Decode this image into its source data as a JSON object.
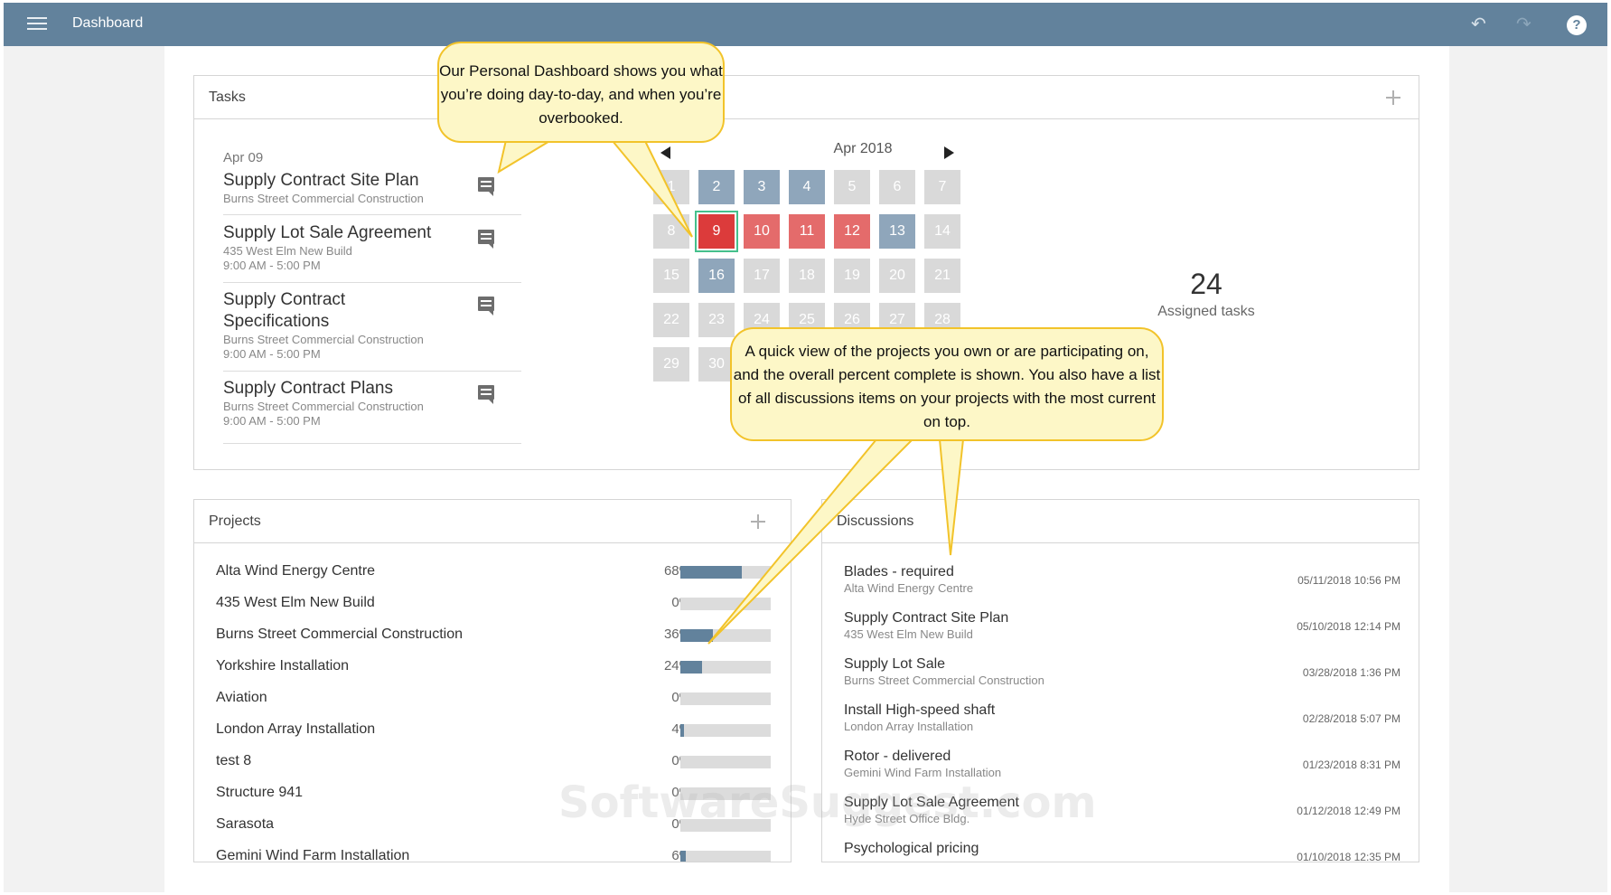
{
  "app": {
    "title": "Dashboard"
  },
  "tasks": {
    "header": "Tasks",
    "date": "Apr 09",
    "items": [
      {
        "name": "Supply Contract Site Plan",
        "project": "Burns Street Commercial Construction",
        "time": ""
      },
      {
        "name": "Supply Lot Sale Agreement",
        "project": "435 West Elm New Build",
        "time": "9:00 AM - 5:00 PM"
      },
      {
        "name": "Supply Contract Specifications",
        "project": "Burns Street Commercial Construction",
        "time": "9:00 AM - 5:00 PM"
      },
      {
        "name": "Supply Contract Plans",
        "project": "Burns Street Commercial Construction",
        "time": "9:00 AM - 5:00 PM"
      }
    ],
    "calendar": {
      "month": "Apr 2018",
      "days": [
        {
          "d": "1",
          "s": "empty"
        },
        {
          "d": "2",
          "s": "busy"
        },
        {
          "d": "3",
          "s": "busy"
        },
        {
          "d": "4",
          "s": "busy"
        },
        {
          "d": "5",
          "s": "empty"
        },
        {
          "d": "6",
          "s": "empty"
        },
        {
          "d": "7",
          "s": "empty"
        },
        {
          "d": "8",
          "s": "empty"
        },
        {
          "d": "9",
          "s": "sel"
        },
        {
          "d": "10",
          "s": "over"
        },
        {
          "d": "11",
          "s": "over"
        },
        {
          "d": "12",
          "s": "over"
        },
        {
          "d": "13",
          "s": "busy"
        },
        {
          "d": "14",
          "s": "empty"
        },
        {
          "d": "15",
          "s": "empty"
        },
        {
          "d": "16",
          "s": "busy"
        },
        {
          "d": "17",
          "s": "empty"
        },
        {
          "d": "18",
          "s": "empty"
        },
        {
          "d": "19",
          "s": "empty"
        },
        {
          "d": "20",
          "s": "empty"
        },
        {
          "d": "21",
          "s": "empty"
        },
        {
          "d": "22",
          "s": "empty"
        },
        {
          "d": "23",
          "s": "empty"
        },
        {
          "d": "24",
          "s": "empty"
        },
        {
          "d": "25",
          "s": "empty"
        },
        {
          "d": "26",
          "s": "empty"
        },
        {
          "d": "27",
          "s": "empty"
        },
        {
          "d": "28",
          "s": "empty"
        },
        {
          "d": "29",
          "s": "empty"
        },
        {
          "d": "30",
          "s": "empty"
        }
      ]
    },
    "assigned_count": "24",
    "assigned_label": "Assigned tasks"
  },
  "projects": {
    "header": "Projects",
    "items": [
      {
        "name": "Alta Wind Energy Centre",
        "pct_label": "68%",
        "pct": 68
      },
      {
        "name": "435 West Elm New Build",
        "pct_label": "0%",
        "pct": 0
      },
      {
        "name": "Burns Street Commercial Construction",
        "pct_label": "36%",
        "pct": 36
      },
      {
        "name": "Yorkshire Installation",
        "pct_label": "24%",
        "pct": 24
      },
      {
        "name": "Aviation",
        "pct_label": "0%",
        "pct": 0
      },
      {
        "name": "London Array Installation",
        "pct_label": "4%",
        "pct": 4
      },
      {
        "name": "test 8",
        "pct_label": "0%",
        "pct": 0
      },
      {
        "name": "Structure 941",
        "pct_label": "0%",
        "pct": 0
      },
      {
        "name": "Sarasota",
        "pct_label": "0%",
        "pct": 0
      },
      {
        "name": "Gemini Wind Farm Installation",
        "pct_label": "6%",
        "pct": 6
      }
    ]
  },
  "discussions": {
    "header": "Discussions",
    "items": [
      {
        "title": "Blades - required",
        "project": "Alta Wind Energy Centre",
        "time": "05/11/2018 10:56 PM"
      },
      {
        "title": "Supply Contract Site Plan",
        "project": "435 West Elm New Build",
        "time": "05/10/2018 12:14 PM"
      },
      {
        "title": "Supply Lot Sale",
        "project": "Burns Street Commercial Construction",
        "time": "03/28/2018 1:36 PM"
      },
      {
        "title": "Install High-speed shaft",
        "project": "London Array Installation",
        "time": "02/28/2018 5:07 PM"
      },
      {
        "title": "Rotor - delivered",
        "project": "Gemini Wind Farm Installation",
        "time": "01/23/2018 8:31 PM"
      },
      {
        "title": "Supply Lot Sale Agreement",
        "project": "Hyde Street Office Bldg.",
        "time": "01/12/2018 12:49 PM"
      },
      {
        "title": "Psychological pricing",
        "project": "",
        "time": "01/10/2018 12:35 PM"
      }
    ]
  },
  "callouts": {
    "personal_dashboard": "Our Personal Dashboard shows you what you’re doing day-to-day, and when you’re overbooked.",
    "quick_view": "A quick view of the projects you own or are participating on, and the overall percent complete is shown. You also have a list of all discussions items on your projects with the most current on top."
  },
  "watermark": "SoftwareSuggest.com",
  "colors": {
    "topbar": "#62829c",
    "busy": "#8fa6bb",
    "overbooked": "#e46b6b",
    "selected": "#dc3b3b",
    "callout_bg": "#fdf7c7",
    "callout_border": "#f2c32a"
  },
  "icons": {
    "menu": "hamburger-icon",
    "undo": "undo-icon",
    "redo": "redo-icon",
    "help": "help-icon",
    "comment": "comment-icon",
    "add": "plus-icon"
  }
}
